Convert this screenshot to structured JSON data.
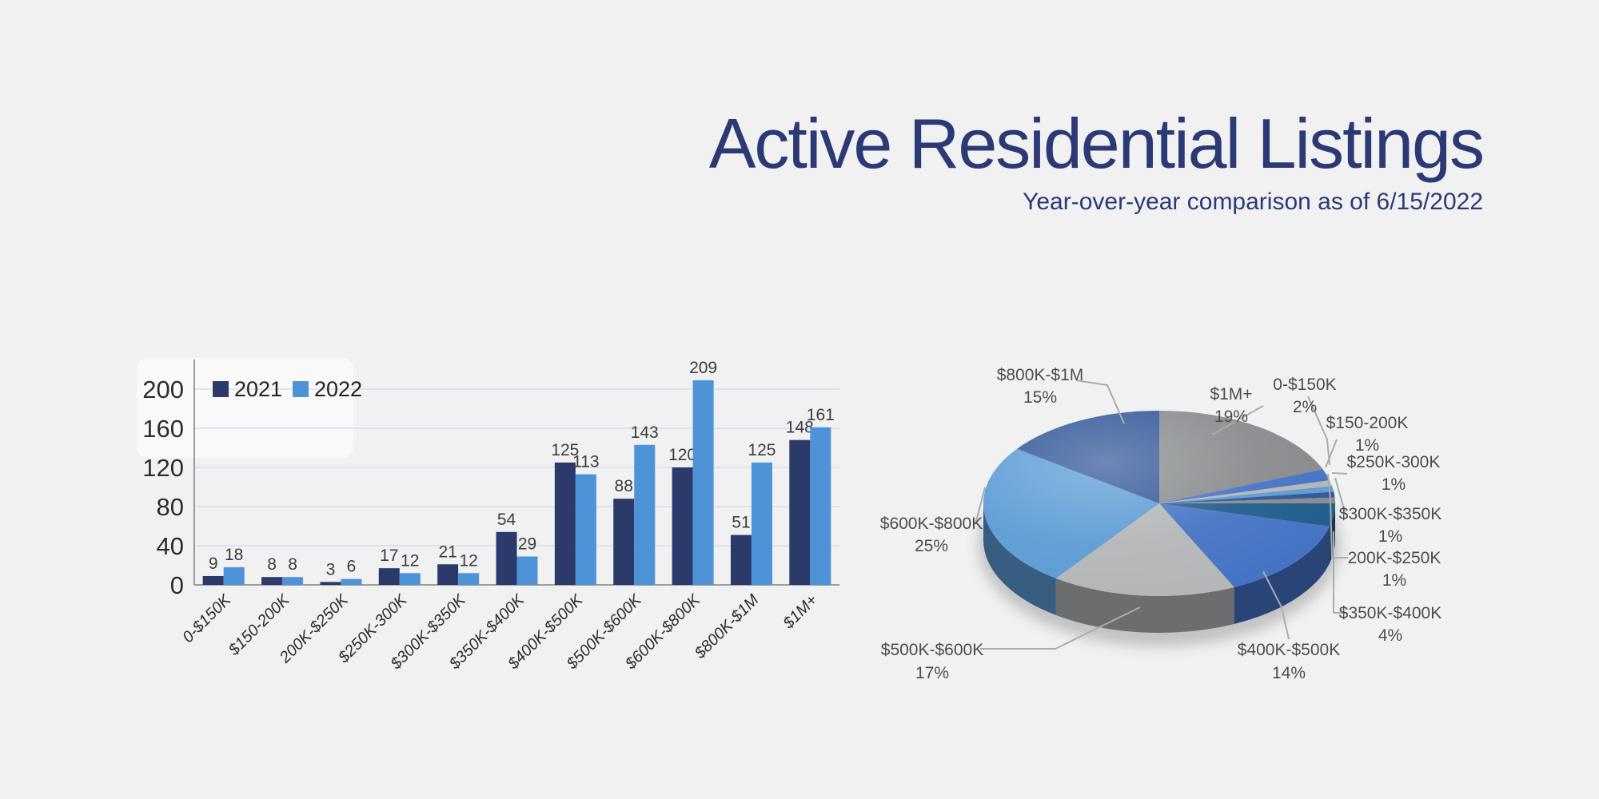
{
  "header": {
    "title": "Active Residential Listings",
    "subtitle": "Year-over-year comparison as of 6/15/2022"
  },
  "colors": {
    "background": "#f1f1f2",
    "title_text": "#2b3a75",
    "gridline": "#d8deee",
    "axis_line": "#8f8f8f",
    "value_label_text": "#3c3c3c",
    "tick_label_text": "#2d2d2d",
    "pie_label_text": "#4d4d4d",
    "callout_line": "#a8abb0",
    "series_2021": "#2b3a6b",
    "series_2022": "#4e92d8"
  },
  "chart_data": [
    {
      "type": "bar",
      "title": "",
      "xlabel": "",
      "ylabel": "",
      "categories": [
        "0-$150K",
        "$150-200K",
        "200K-$250K",
        "$250K-300K",
        "$300K-$350K",
        "$350K-$400K",
        "$400K-$500K",
        "$500K-$600K",
        "$600K-$800K",
        "$800K-$1M",
        "$1M+"
      ],
      "series": [
        {
          "name": "2021",
          "color": "#2b3a6b",
          "values": [
            9,
            8,
            3,
            17,
            21,
            54,
            125,
            88,
            120,
            51,
            148
          ]
        },
        {
          "name": "2022",
          "color": "#4e92d8",
          "values": [
            18,
            8,
            6,
            12,
            12,
            29,
            113,
            143,
            209,
            125,
            161
          ]
        }
      ],
      "ylim": [
        0,
        200
      ],
      "yticks": [
        0,
        40,
        80,
        120,
        160,
        200
      ],
      "grid": true,
      "legend_position": "top-left",
      "value_labels": true
    },
    {
      "type": "pie",
      "style": "3d",
      "start_angle_deg": 0,
      "direction": "clockwise",
      "slices": [
        {
          "label": "$1M+",
          "pct": 19,
          "pct_text": "19%",
          "color": "#87898c"
        },
        {
          "label": "0-$150K",
          "pct": 2,
          "pct_text": "2%",
          "color": "#4472c4"
        },
        {
          "label": "$150-200K",
          "pct": 1,
          "pct_text": "1%",
          "color": "#b3b5b7"
        },
        {
          "label": "200K-$250K",
          "pct": 1,
          "pct_text": "1%",
          "color": "#5b9bd5"
        },
        {
          "label": "$250K-300K",
          "pct": 1,
          "pct_text": "1%",
          "color": "#2f5597"
        },
        {
          "label": "$300K-$350K",
          "pct": 1,
          "pct_text": "1%",
          "color": "#87898c"
        },
        {
          "label": "$350K-$400K",
          "pct": 4,
          "pct_text": "4%",
          "color": "#1f5c8b"
        },
        {
          "label": "$400K-$500K",
          "pct": 14,
          "pct_text": "14%",
          "color": "#4472c4"
        },
        {
          "label": "$500K-$600K",
          "pct": 17,
          "pct_text": "17%",
          "color": "#b3b5b7"
        },
        {
          "label": "$600K-$800K",
          "pct": 25,
          "pct_text": "25%",
          "color": "#5b9bd5"
        },
        {
          "label": "$800K-$1M",
          "pct": 15,
          "pct_text": "15%",
          "color": "#2f5597"
        }
      ]
    }
  ]
}
